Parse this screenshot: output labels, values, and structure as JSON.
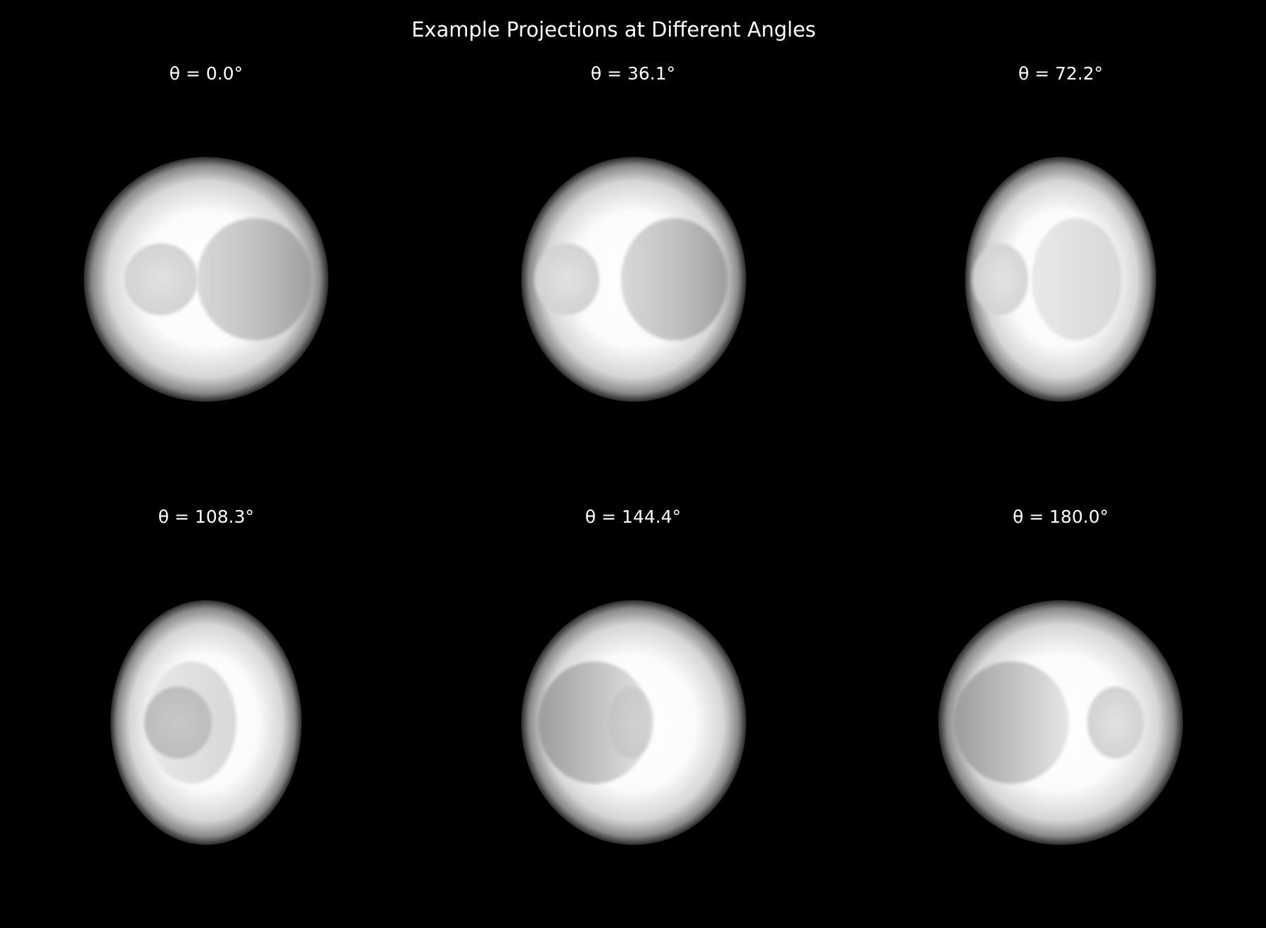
{
  "figure": {
    "title": "Example Projections at Different Angles",
    "background": "#000000",
    "text_color": "#ffffff"
  },
  "panels": [
    {
      "title": "θ = 0.0°"
    },
    {
      "title": "θ = 36.1°"
    },
    {
      "title": "θ = 72.2°"
    },
    {
      "title": "θ = 108.3°"
    },
    {
      "title": "θ = 144.4°"
    },
    {
      "title": "θ = 180.0°"
    }
  ]
}
